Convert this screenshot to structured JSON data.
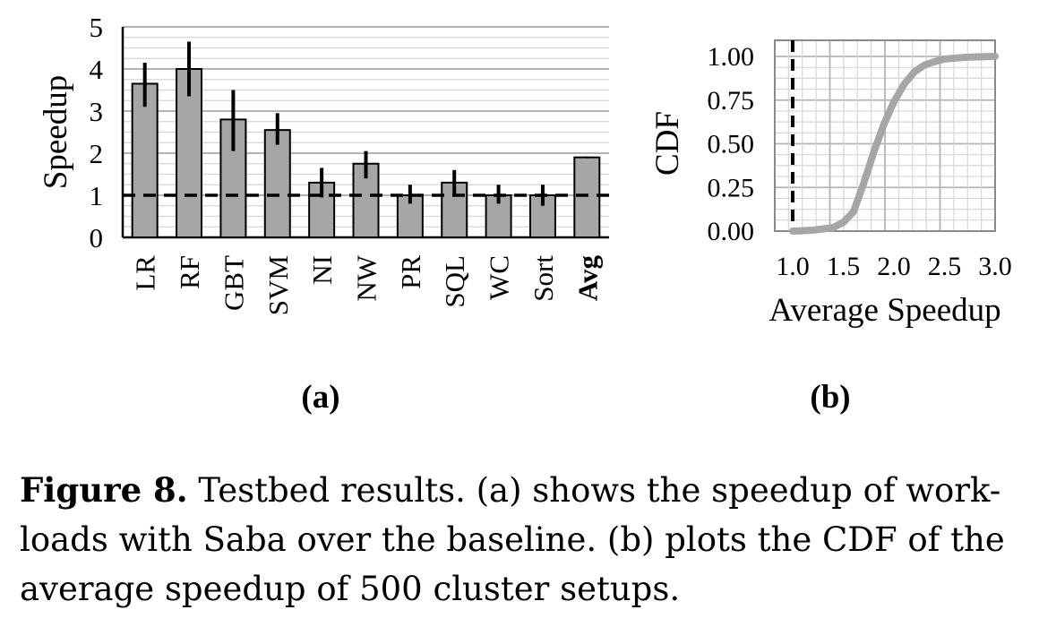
{
  "chart_data": [
    {
      "type": "bar",
      "panel_label": "(a)",
      "ylabel": "Speedup",
      "ylim": [
        0,
        5
      ],
      "yticks": [
        "0",
        "1",
        "2",
        "3",
        "4",
        "5"
      ],
      "categories": [
        "LR",
        "RF",
        "GBT",
        "SVM",
        "NI",
        "NW",
        "PR",
        "SQL",
        "WC",
        "Sort",
        "Avg"
      ],
      "values": [
        3.65,
        4.0,
        2.8,
        2.55,
        1.3,
        1.75,
        1.0,
        1.3,
        1.0,
        1.0,
        1.9
      ],
      "errors": [
        [
          3.1,
          4.15
        ],
        [
          3.35,
          4.65
        ],
        [
          2.05,
          3.5
        ],
        [
          2.2,
          2.95
        ],
        [
          0.95,
          1.65
        ],
        [
          1.4,
          2.05
        ],
        [
          0.8,
          1.25
        ],
        [
          1.0,
          1.6
        ],
        [
          0.8,
          1.25
        ],
        [
          0.75,
          1.25
        ],
        [
          1.88,
          1.92
        ]
      ],
      "reference_line": 1.0,
      "bold_category": "Avg",
      "grid": true,
      "colors": {
        "bar": "#a6a6a6",
        "edge": "#000000",
        "grid": "#c8c8c8"
      }
    },
    {
      "type": "line",
      "panel_label": "(b)",
      "xlabel": "Average Speedup",
      "ylabel": "CDF",
      "xlim": [
        1.0,
        3.0
      ],
      "ylim": [
        0.0,
        1.0
      ],
      "xticks": [
        "1.0",
        "1.5",
        "2.0",
        "2.5",
        "3.0"
      ],
      "yticks": [
        "0.00",
        "0.25",
        "0.50",
        "0.75",
        "1.00"
      ],
      "x": [
        1.0,
        1.2,
        1.4,
        1.5,
        1.6,
        1.7,
        1.8,
        1.9,
        2.0,
        2.1,
        2.2,
        2.3,
        2.4,
        2.5,
        2.6,
        2.7,
        2.8,
        2.9,
        3.0
      ],
      "y": [
        0.0,
        0.005,
        0.02,
        0.05,
        0.11,
        0.27,
        0.45,
        0.61,
        0.74,
        0.84,
        0.91,
        0.95,
        0.97,
        0.985,
        0.99,
        0.995,
        0.997,
        0.999,
        1.0
      ],
      "reference_line_x": 1.0,
      "grid": true,
      "colors": {
        "line": "#a6a6a6",
        "grid": "#c8c8c8"
      }
    }
  ],
  "caption": {
    "lead": "Figure 8.",
    "text": " Testbed results. (a) shows the speedup of work-loads with Saba over the baseline. (b) plots the CDF of the average speedup of 500 cluster setups."
  }
}
